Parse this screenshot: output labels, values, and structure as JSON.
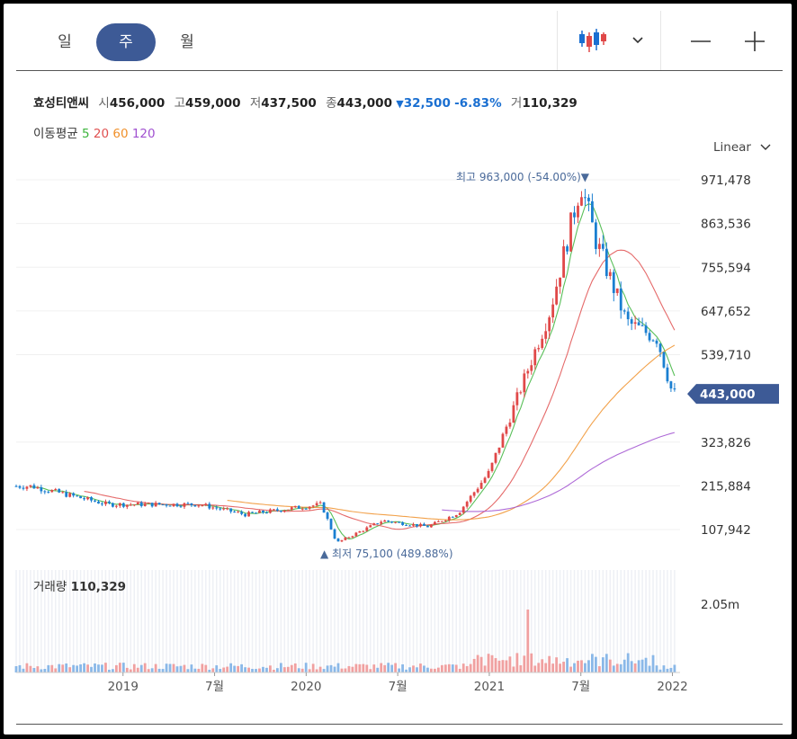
{
  "tabs": [
    {
      "label": "일",
      "active": false
    },
    {
      "label": "주",
      "active": true
    },
    {
      "label": "월",
      "active": false
    }
  ],
  "ohlc": {
    "name": "효성티앤씨",
    "open_label": "시",
    "open": "456,000",
    "high_label": "고",
    "high": "459,000",
    "low_label": "저",
    "low": "437,500",
    "close_label": "종",
    "close": "443,000",
    "change_arrow": "▼",
    "change": "32,500",
    "change_pct": "-6.83%",
    "volume_label": "거",
    "volume": "110,329"
  },
  "ma": {
    "label": "이동평균",
    "periods": [
      "5",
      "20",
      "60",
      "120"
    ],
    "colors": [
      "#3cb43c",
      "#e05050",
      "#f0902a",
      "#a050d0"
    ]
  },
  "scale_label": "Linear",
  "chart_data": {
    "type": "candlestick",
    "yticks": [
      "971,478",
      "863,536",
      "755,594",
      "647,652",
      "539,710",
      "323,826",
      "215,884",
      "107,942"
    ],
    "ytick_values": [
      971478,
      863536,
      755594,
      647652,
      539710,
      323826,
      215884,
      107942
    ],
    "xticks": [
      "2019",
      "7월",
      "2020",
      "7월",
      "2021",
      "7월",
      "2022"
    ],
    "current_price_label": "443,000",
    "current_price": 443000,
    "high_annotation": {
      "label": "최고",
      "value": "963,000 (-54.00%)",
      "arrow": "▼"
    },
    "low_annotation": {
      "label": "최저",
      "value": "75,100 (489.88%)",
      "arrow": "▲"
    },
    "volume": {
      "label": "거래량",
      "value": "110,329",
      "ytick": "2.05m"
    },
    "key_points": [
      {
        "date": "2018-07",
        "price": 215000
      },
      {
        "date": "2018-12",
        "price": 170000
      },
      {
        "date": "2019-06",
        "price": 170000
      },
      {
        "date": "2019-09",
        "price": 145000
      },
      {
        "date": "2019-12",
        "price": 160000
      },
      {
        "date": "2020-02",
        "price": 170000
      },
      {
        "date": "2020-03",
        "price": 75100
      },
      {
        "date": "2020-06",
        "price": 130000
      },
      {
        "date": "2020-09",
        "price": 115000
      },
      {
        "date": "2020-11",
        "price": 150000
      },
      {
        "date": "2021-01",
        "price": 250000
      },
      {
        "date": "2021-03",
        "price": 450000
      },
      {
        "date": "2021-05",
        "price": 650000
      },
      {
        "date": "2021-07",
        "price": 963000
      },
      {
        "date": "2021-08",
        "price": 820000
      },
      {
        "date": "2021-10",
        "price": 620000
      },
      {
        "date": "2021-12",
        "price": 580000
      },
      {
        "date": "2022-01",
        "price": 443000
      }
    ]
  }
}
